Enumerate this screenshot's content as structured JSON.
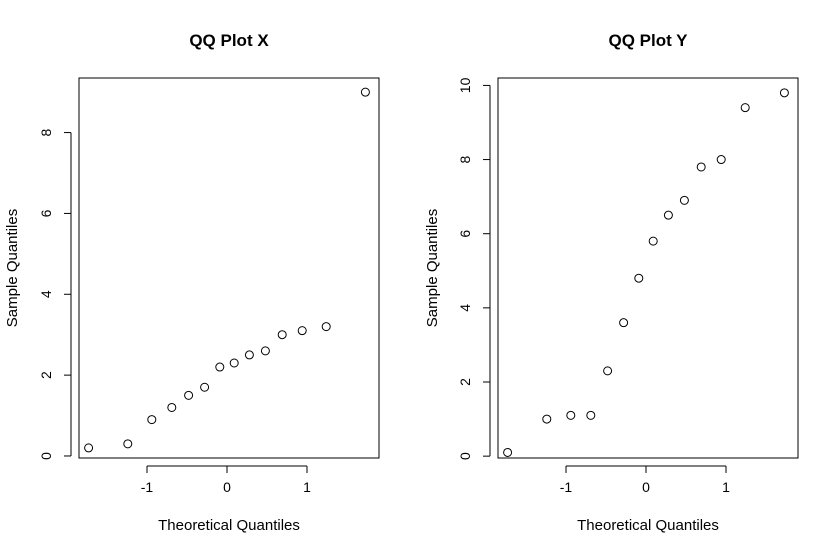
{
  "chart_data": [
    {
      "type": "scatter",
      "title": "QQ Plot X",
      "xlabel": "Theoretical Quantiles",
      "ylabel": "Sample Quantiles",
      "xlim": [
        -1.85,
        1.9
      ],
      "ylim": [
        -0.05,
        9.35
      ],
      "xticks": [
        -1,
        0,
        1
      ],
      "yticks": [
        0,
        2,
        4,
        6,
        8
      ],
      "grid": false,
      "marker": "open-circle",
      "color": "#000000",
      "x": [
        -1.73,
        -1.24,
        -0.94,
        -0.69,
        -0.48,
        -0.28,
        -0.09,
        0.09,
        0.28,
        0.48,
        0.69,
        0.94,
        1.24,
        1.73
      ],
      "y": [
        0.2,
        0.3,
        0.9,
        1.2,
        1.5,
        1.7,
        2.2,
        2.3,
        2.5,
        2.6,
        3.0,
        3.1,
        3.2,
        9.0
      ]
    },
    {
      "type": "scatter",
      "title": "QQ Plot Y",
      "xlabel": "Theoretical Quantiles",
      "ylabel": "Sample Quantiles",
      "xlim": [
        -1.85,
        1.9
      ],
      "ylim": [
        -0.05,
        10.2
      ],
      "xticks": [
        -1,
        0,
        1
      ],
      "yticks": [
        0,
        2,
        4,
        6,
        8,
        10
      ],
      "grid": false,
      "marker": "open-circle",
      "color": "#000000",
      "x": [
        -1.73,
        -1.24,
        -0.94,
        -0.69,
        -0.48,
        -0.28,
        -0.09,
        0.09,
        0.28,
        0.48,
        0.69,
        0.94,
        1.24,
        1.73
      ],
      "y": [
        0.1,
        1.0,
        1.1,
        1.1,
        2.3,
        3.6,
        4.8,
        5.8,
        6.5,
        6.9,
        7.8,
        8.0,
        9.4,
        9.8
      ]
    }
  ]
}
